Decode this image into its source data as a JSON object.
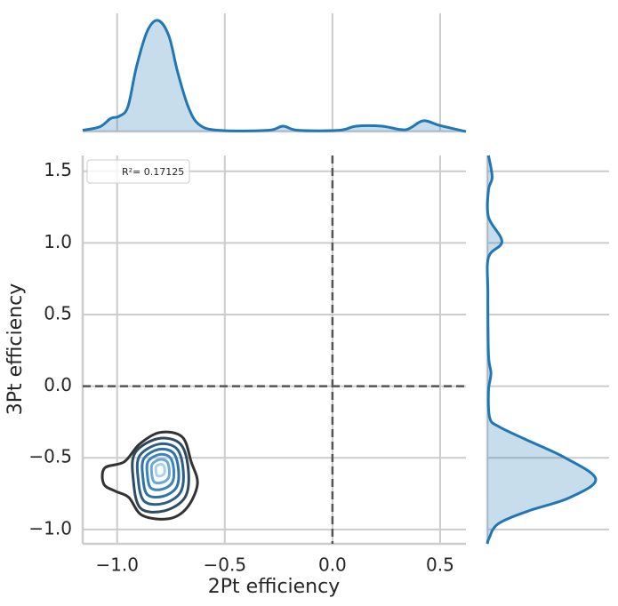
{
  "chart_data": {
    "type": "jointkde",
    "xlabel": "2Pt efficiency",
    "ylabel": "3Pt efficiency",
    "legend_label": "R²= 0.17125",
    "xlim": [
      -1.16,
      0.62
    ],
    "ylim": [
      -1.1,
      1.61
    ],
    "xticks": [
      {
        "value": -1.0,
        "label": "−1.0"
      },
      {
        "value": -0.5,
        "label": "−0.5"
      },
      {
        "value": 0.0,
        "label": "0.0"
      },
      0.5
    ],
    "yticks": [
      {
        "value": -1.0,
        "label": "−1.0"
      },
      {
        "value": -0.5,
        "label": "−0.5"
      },
      {
        "value": 0.0,
        "label": "0.0"
      },
      0.5,
      {
        "value": 1.0,
        "label": "1.0"
      },
      1.5
    ],
    "grid": true,
    "vlines": [
      0
    ],
    "hlines": [
      0
    ],
    "density_lim": [
      0,
      1
    ],
    "marginal_color": "#1f77b4",
    "top_marginal": {
      "x": [
        -1.16,
        -1.08,
        -1.03,
        -0.99,
        -0.95,
        -0.91,
        -0.86,
        -0.81,
        -0.76,
        -0.72,
        -0.67,
        -0.62,
        -0.53,
        -0.3,
        -0.23,
        -0.16,
        0.03,
        0.11,
        0.23,
        0.34,
        0.42,
        0.5,
        0.62
      ],
      "density": [
        0.01,
        0.04,
        0.11,
        0.13,
        0.21,
        0.55,
        0.85,
        0.94,
        0.81,
        0.51,
        0.21,
        0.06,
        0.01,
        0.01,
        0.045,
        0.01,
        0.01,
        0.045,
        0.045,
        0.015,
        0.09,
        0.05,
        0.0
      ]
    },
    "right_marginal": {
      "y": [
        1.61,
        1.46,
        1.37,
        1.18,
        1.01,
        0.9,
        0.65,
        0.22,
        0.09,
        -0.03,
        -0.22,
        -0.28,
        -0.37,
        -0.5,
        -0.65,
        -0.78,
        -0.87,
        -0.96,
        -1.06,
        -1.1
      ],
      "density": [
        0.01,
        0.04,
        0.01,
        0.01,
        0.12,
        0.01,
        0.005,
        0.01,
        0.03,
        0.01,
        0.02,
        0.09,
        0.31,
        0.64,
        0.89,
        0.67,
        0.34,
        0.09,
        0.015,
        0.0
      ]
    },
    "contours": [
      {
        "color": "#333333",
        "x": [
          -1.062,
          -1.058,
          -0.967,
          -0.896,
          -0.801,
          -0.698,
          -0.656,
          -0.627,
          -0.677,
          -0.76,
          -0.884,
          -0.946,
          -1.008
        ],
        "y": [
          -0.683,
          -0.571,
          -0.528,
          -0.404,
          -0.323,
          -0.354,
          -0.528,
          -0.683,
          -0.851,
          -0.925,
          -0.901,
          -0.776,
          -0.733
        ]
      },
      {
        "color": "#2f4a60",
        "x": [
          -0.917,
          -0.81,
          -0.706,
          -0.669,
          -0.685,
          -0.781,
          -0.892,
          -0.925
        ],
        "y": [
          -0.466,
          -0.366,
          -0.404,
          -0.59,
          -0.776,
          -0.87,
          -0.851,
          -0.652
        ]
      },
      {
        "color": "#2c5f85",
        "x": [
          -0.896,
          -0.808,
          -0.723,
          -0.693,
          -0.706,
          -0.784,
          -0.875,
          -0.903
        ],
        "y": [
          -0.487,
          -0.405,
          -0.436,
          -0.588,
          -0.741,
          -0.818,
          -0.802,
          -0.639
        ]
      },
      {
        "color": "#2e72a6",
        "x": [
          -0.876,
          -0.807,
          -0.739,
          -0.715,
          -0.725,
          -0.788,
          -0.86,
          -0.881
        ],
        "y": [
          -0.506,
          -0.441,
          -0.466,
          -0.587,
          -0.707,
          -0.769,
          -0.756,
          -0.627
        ]
      },
      {
        "color": "#3b86be",
        "x": [
          -0.856,
          -0.805,
          -0.755,
          -0.737,
          -0.745,
          -0.791,
          -0.844,
          -0.86
        ],
        "y": [
          -0.525,
          -0.477,
          -0.496,
          -0.585,
          -0.674,
          -0.719,
          -0.71,
          -0.615
        ]
      },
      {
        "color": "#6aa8d6",
        "x": [
          -0.837,
          -0.803,
          -0.77,
          -0.758,
          -0.763,
          -0.794,
          -0.829,
          -0.84
        ],
        "y": [
          -0.544,
          -0.512,
          -0.524,
          -0.583,
          -0.643,
          -0.673,
          -0.667,
          -0.603
        ]
      },
      {
        "color": "#acd0eb",
        "x": [
          -0.819,
          -0.802,
          -0.785,
          -0.779,
          -0.782,
          -0.797,
          -0.815,
          -0.82
        ],
        "y": [
          -0.562,
          -0.546,
          -0.552,
          -0.582,
          -0.611,
          -0.626,
          -0.623,
          -0.592
        ]
      }
    ]
  }
}
